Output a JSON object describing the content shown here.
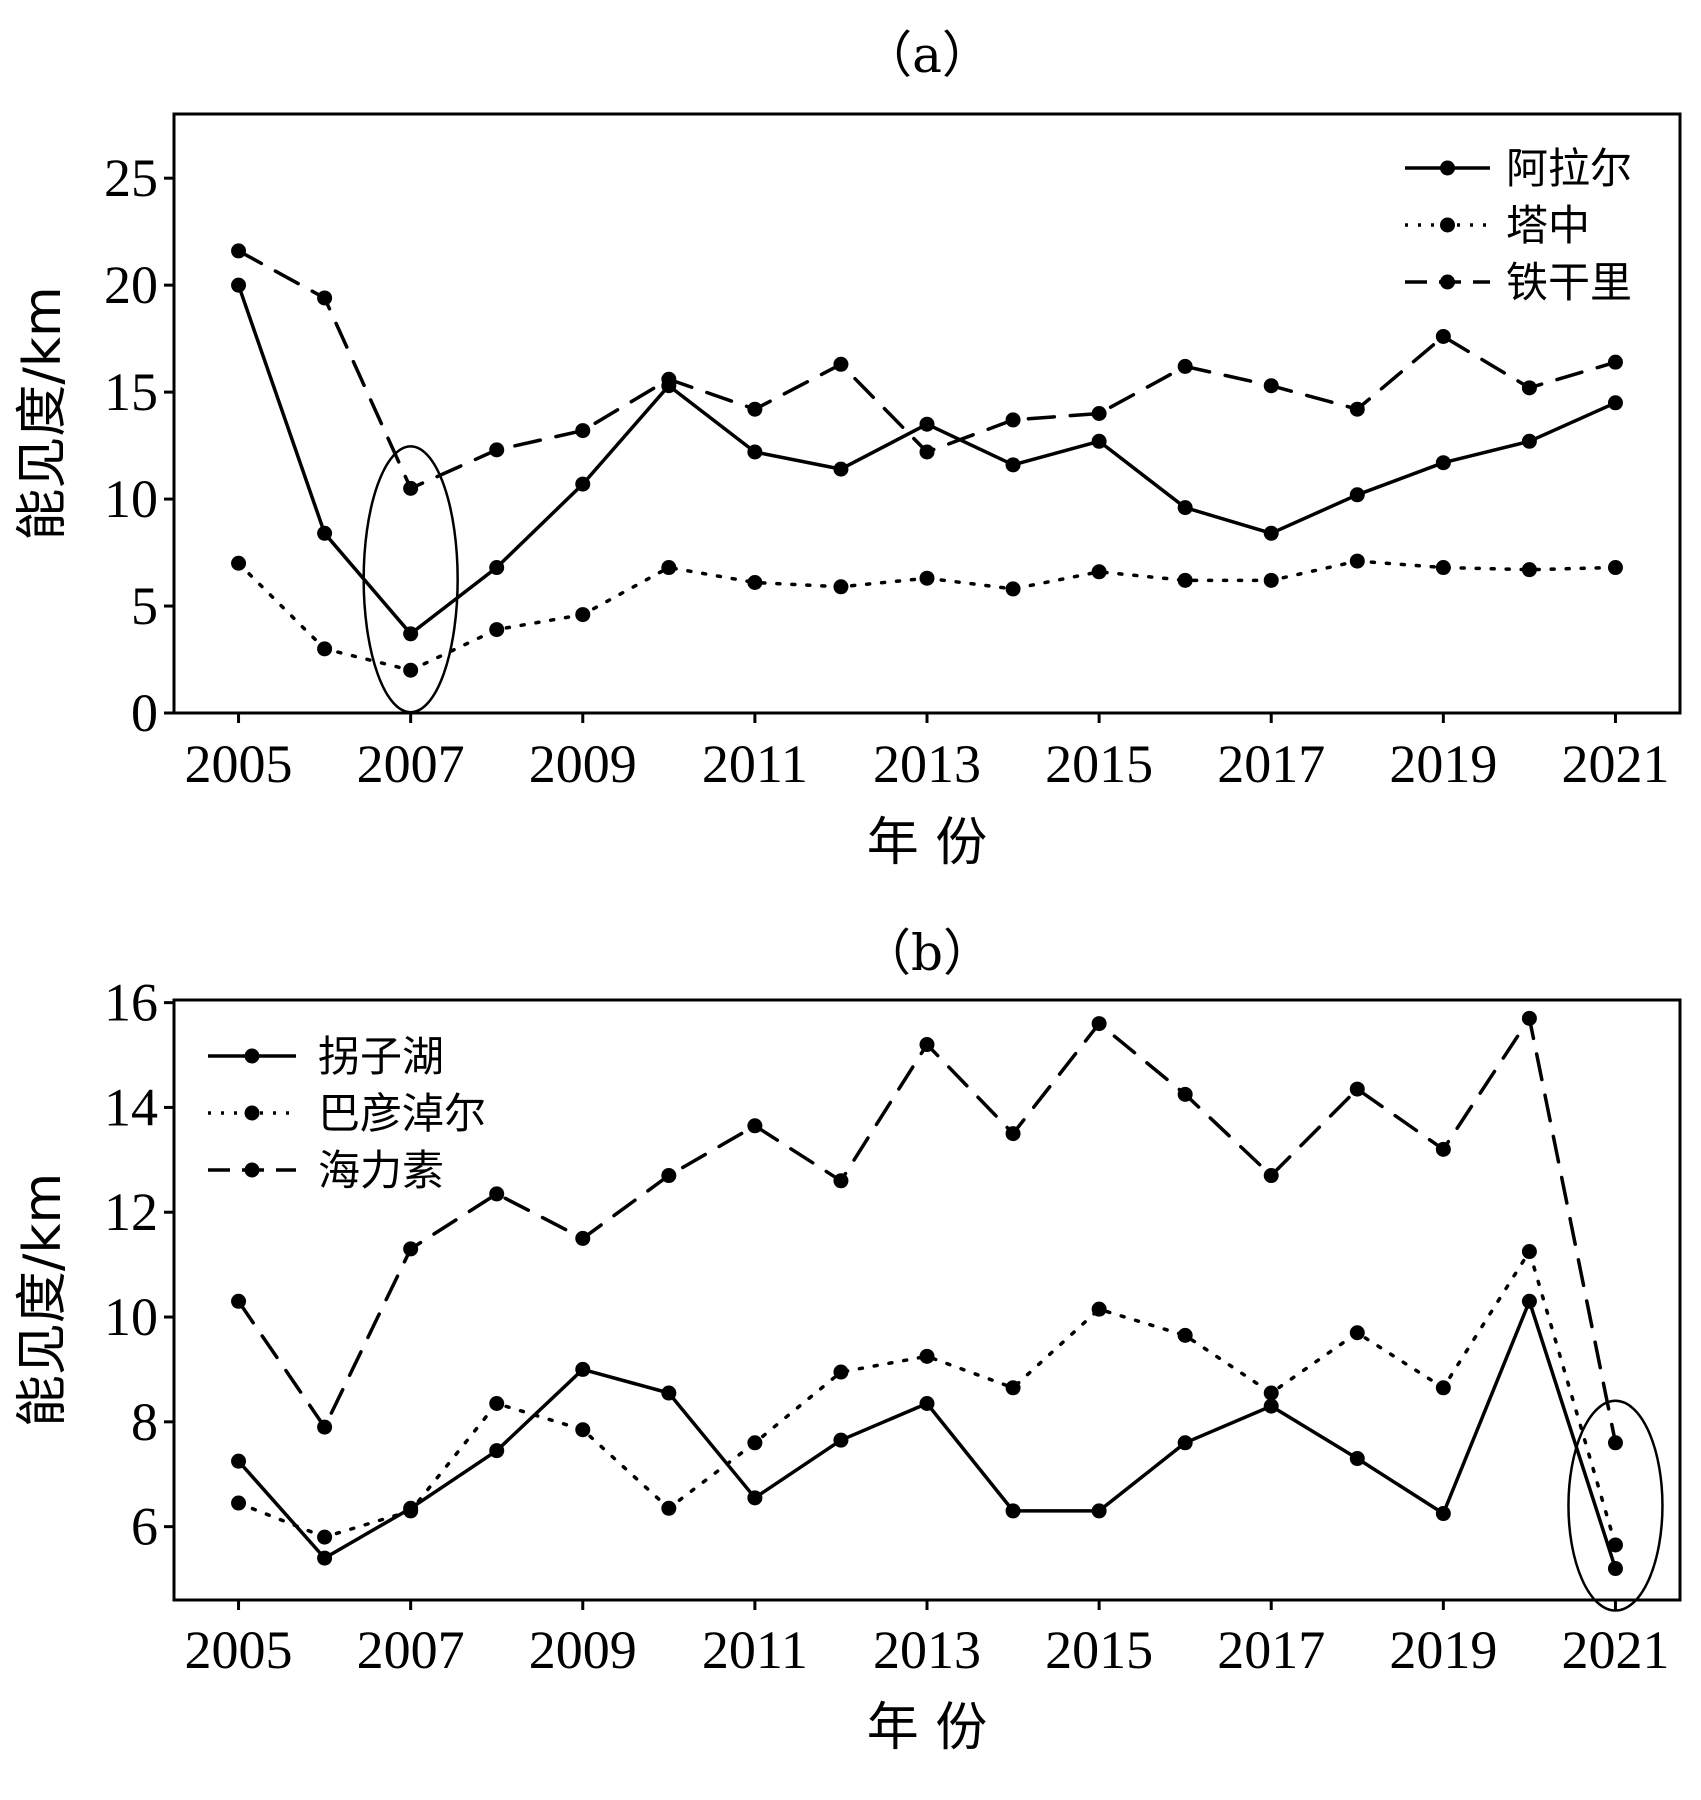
{
  "chart_data": [
    {
      "type": "line",
      "title": "（a）",
      "xlabel": "年  份",
      "ylabel": "能见度/km",
      "x": [
        2005,
        2006,
        2007,
        2008,
        2009,
        2010,
        2011,
        2012,
        2013,
        2014,
        2015,
        2016,
        2017,
        2018,
        2019,
        2020,
        2021
      ],
      "xlim": [
        2004.25,
        2021.75
      ],
      "xticks": [
        "2005",
        "2007",
        "2009",
        "2011",
        "2013",
        "2015",
        "2017",
        "2019",
        "2021"
      ],
      "ylim": [
        0,
        28
      ],
      "yticks": [
        "0",
        "5",
        "10",
        "15",
        "20",
        "25"
      ],
      "grid": false,
      "legend_position": "top-right",
      "highlight": {
        "shape": "ellipse",
        "x": 2007
      },
      "series": [
        {
          "name": "阿拉尔",
          "style": "solid",
          "values": [
            20.0,
            8.4,
            3.7,
            6.8,
            10.7,
            15.3,
            12.2,
            11.4,
            13.5,
            11.6,
            12.7,
            9.6,
            8.4,
            10.2,
            11.7,
            12.7,
            14.5
          ]
        },
        {
          "name": "塔中",
          "style": "dotted",
          "values": [
            7.0,
            3.0,
            2.0,
            3.9,
            4.6,
            6.8,
            6.1,
            5.9,
            6.3,
            5.8,
            6.6,
            6.2,
            6.2,
            7.1,
            6.8,
            6.7,
            6.8
          ]
        },
        {
          "name": "铁干里",
          "style": "dashed",
          "values": [
            21.6,
            19.4,
            10.5,
            12.3,
            13.2,
            15.6,
            14.2,
            16.3,
            12.2,
            13.7,
            14.0,
            16.2,
            15.3,
            14.2,
            17.6,
            15.2,
            16.4
          ]
        }
      ]
    },
    {
      "type": "line",
      "title": "（b）",
      "xlabel": "年  份",
      "ylabel": "能见度/km",
      "x": [
        2005,
        2006,
        2007,
        2008,
        2009,
        2010,
        2011,
        2012,
        2013,
        2014,
        2015,
        2016,
        2017,
        2018,
        2019,
        2020,
        2021
      ],
      "xlim": [
        2004.25,
        2021.75
      ],
      "xticks": [
        "2005",
        "2007",
        "2009",
        "2011",
        "2013",
        "2015",
        "2017",
        "2019",
        "2021"
      ],
      "ylim": [
        4.6,
        16.05
      ],
      "yticks": [
        "6",
        "8",
        "10",
        "12",
        "14",
        "16"
      ],
      "grid": false,
      "legend_position": "top-left",
      "highlight": {
        "shape": "ellipse",
        "x": 2021
      },
      "series": [
        {
          "name": "拐子湖",
          "style": "solid",
          "values": [
            7.25,
            5.4,
            6.35,
            7.45,
            9.0,
            8.55,
            6.55,
            7.65,
            8.35,
            6.3,
            6.3,
            7.6,
            8.3,
            7.3,
            6.25,
            10.3,
            5.2
          ]
        },
        {
          "name": "巴彦淖尔",
          "style": "dotted",
          "values": [
            6.45,
            5.8,
            6.3,
            8.35,
            7.85,
            6.35,
            7.6,
            8.95,
            9.25,
            8.65,
            10.15,
            9.65,
            8.55,
            9.7,
            8.65,
            11.25,
            5.65
          ]
        },
        {
          "name": "海力素",
          "style": "dashed",
          "values": [
            10.3,
            7.9,
            11.3,
            12.35,
            11.5,
            12.7,
            13.65,
            12.6,
            15.2,
            13.5,
            15.6,
            14.25,
            12.7,
            14.35,
            13.2,
            15.7,
            7.6
          ]
        }
      ]
    }
  ]
}
